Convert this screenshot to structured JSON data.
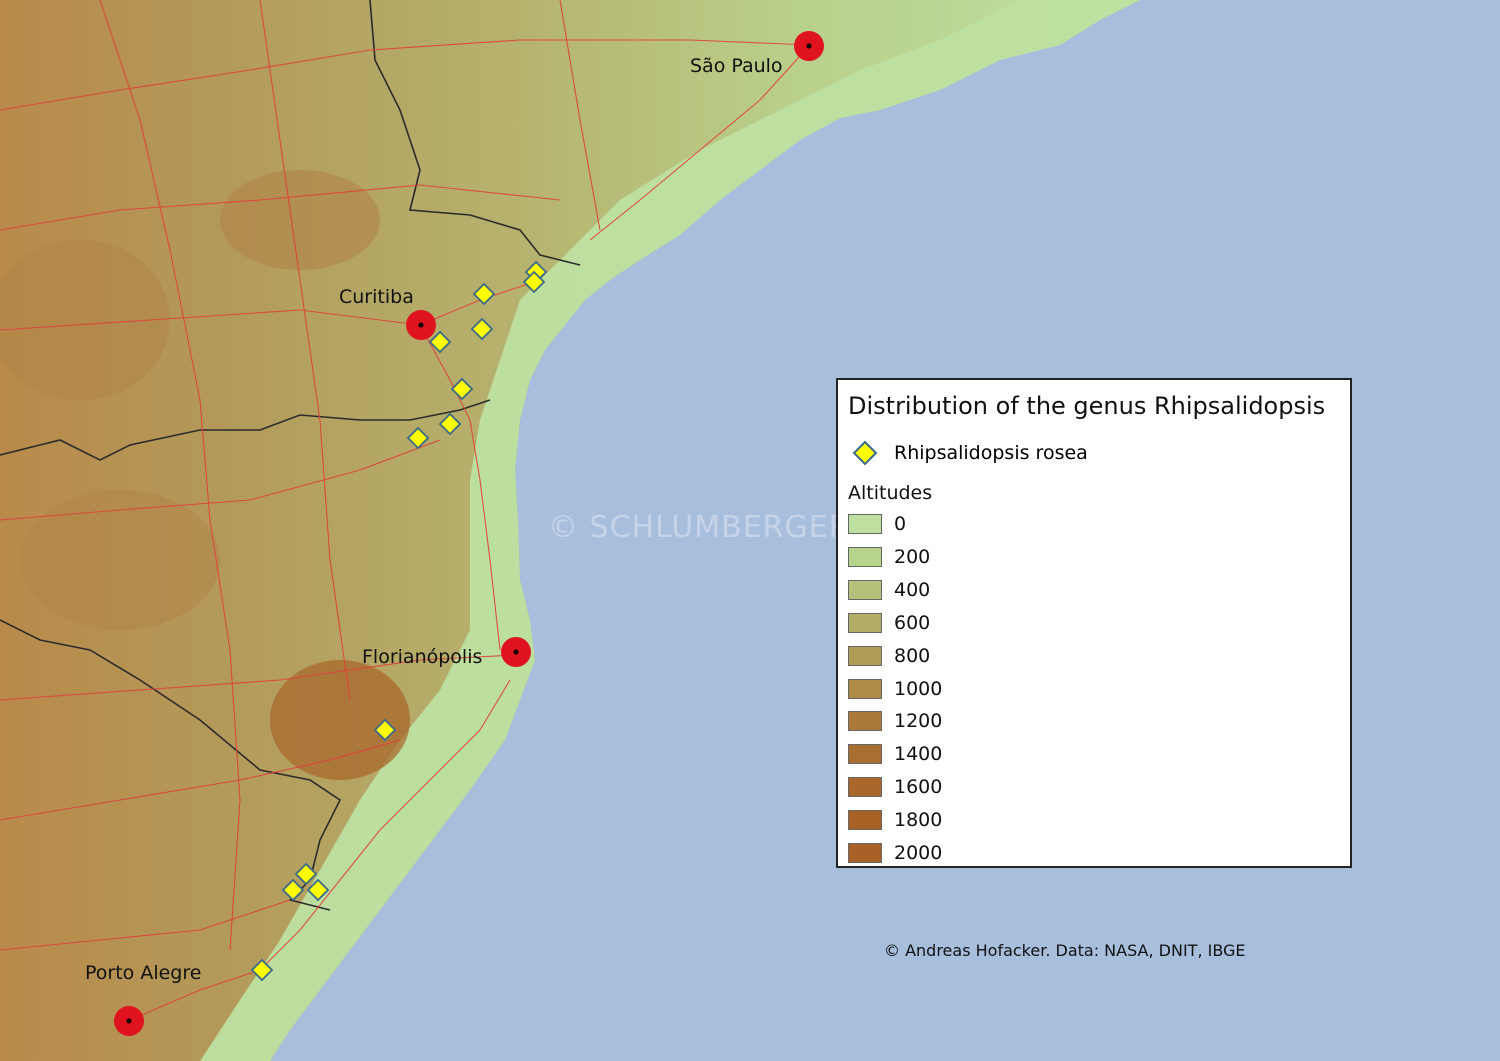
{
  "legend": {
    "title": "Distribution of the genus Rhipsalidopsis",
    "species_label": "Rhipsalidopsis rosea",
    "species_icon": "yellow-diamond-icon",
    "altitudes_header": "Altitudes",
    "altitudes": [
      {
        "label": "0",
        "color": "#bde0a1"
      },
      {
        "label": "200",
        "color": "#b6d48a"
      },
      {
        "label": "400",
        "color": "#b3c17a"
      },
      {
        "label": "600",
        "color": "#b2ad67"
      },
      {
        "label": "800",
        "color": "#b19c57"
      },
      {
        "label": "1000",
        "color": "#ae8b46"
      },
      {
        "label": "1200",
        "color": "#ab7a3a"
      },
      {
        "label": "1400",
        "color": "#a96f31"
      },
      {
        "label": "1600",
        "color": "#aa672b"
      },
      {
        "label": "1800",
        "color": "#a96226"
      },
      {
        "label": "2000",
        "color": "#a86126"
      }
    ]
  },
  "cities": [
    {
      "name": "São Paulo"
    },
    {
      "name": "Curitiba"
    },
    {
      "name": "Florianópolis"
    },
    {
      "name": "Porto Alegre"
    }
  ],
  "credits": "© Andreas Hofacker. Data: NASA, DNIT, IBGE",
  "watermark": "© SCHLUMBERGERA.NET",
  "colors": {
    "ocean": "#a7bedd",
    "coastal_lowland": "#bde0a1",
    "roads": "#e0403a",
    "borders": "#2b2b2b",
    "city_marker": "#e0141e",
    "species_marker": "#ffff00"
  }
}
